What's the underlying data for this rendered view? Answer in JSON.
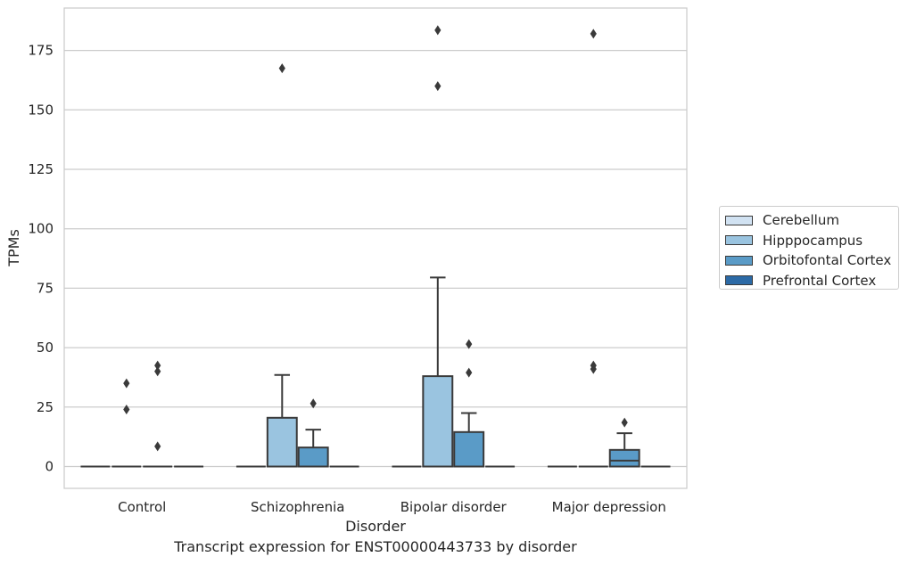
{
  "caption": "Transcript expression for ENST00000443733 by disorder",
  "chart_data": {
    "type": "box",
    "xlabel": "Disorder",
    "ylabel": "TPMs",
    "ylim": [
      -9,
      193
    ],
    "yticks": [
      0,
      25,
      50,
      75,
      100,
      125,
      150,
      175
    ],
    "grid": "horizontal",
    "legend_position": "right",
    "categories": [
      "Control",
      "Schizophrenia",
      "Bipolar disorder",
      "Major depression"
    ],
    "series": [
      {
        "name": "Cerebellum",
        "color": "#d1e2f2",
        "boxes": [
          {
            "q1": 0,
            "median": 0,
            "q3": 0,
            "whislo": 0,
            "whishi": 0,
            "fliers": []
          },
          {
            "q1": 0,
            "median": 0,
            "q3": 0,
            "whislo": 0,
            "whishi": 0,
            "fliers": []
          },
          {
            "q1": 0,
            "median": 0,
            "q3": 0,
            "whislo": 0,
            "whishi": 0,
            "fliers": []
          },
          {
            "q1": 0,
            "median": 0,
            "q3": 0,
            "whislo": 0,
            "whishi": 0,
            "fliers": []
          }
        ]
      },
      {
        "name": "Hipppocampus",
        "color": "#9ac4e0",
        "boxes": [
          {
            "q1": 0,
            "median": 0,
            "q3": 0,
            "whislo": 0,
            "whishi": 0,
            "fliers": [
              35,
              24
            ]
          },
          {
            "q1": 0,
            "median": 0,
            "q3": 20.5,
            "whislo": 0,
            "whishi": 38.5,
            "fliers": [
              167.5
            ]
          },
          {
            "q1": 0,
            "median": 0,
            "q3": 38,
            "whislo": 0,
            "whishi": 79.5,
            "fliers": [
              183.5,
              160
            ]
          },
          {
            "q1": 0,
            "median": 0,
            "q3": 0,
            "whislo": 0,
            "whishi": 0,
            "fliers": [
              182,
              42.5,
              41
            ]
          }
        ]
      },
      {
        "name": "Orbitofontal Cortex",
        "color": "#5a9bc7",
        "boxes": [
          {
            "q1": 0,
            "median": 0,
            "q3": 0,
            "whislo": 0,
            "whishi": 0,
            "fliers": [
              42.5,
              40,
              8.5
            ]
          },
          {
            "q1": 0,
            "median": 0,
            "q3": 8,
            "whislo": 0,
            "whishi": 15.5,
            "fliers": [
              26.5
            ]
          },
          {
            "q1": 0,
            "median": 0,
            "q3": 14.5,
            "whislo": 0,
            "whishi": 22.5,
            "fliers": [
              51.5,
              39.5
            ]
          },
          {
            "q1": 0,
            "median": 2.5,
            "q3": 7,
            "whislo": 0,
            "whishi": 14,
            "fliers": [
              18.5
            ]
          }
        ]
      },
      {
        "name": "Prefrontal Cortex",
        "color": "#2c6aa6",
        "boxes": [
          {
            "q1": 0,
            "median": 0,
            "q3": 0,
            "whislo": 0,
            "whishi": 0,
            "fliers": []
          },
          {
            "q1": 0,
            "median": 0,
            "q3": 0,
            "whislo": 0,
            "whishi": 0,
            "fliers": []
          },
          {
            "q1": 0,
            "median": 0,
            "q3": 0,
            "whislo": 0,
            "whishi": 0,
            "fliers": []
          },
          {
            "q1": 0,
            "median": 0,
            "q3": 0,
            "whislo": 0,
            "whishi": 0,
            "fliers": []
          }
        ]
      }
    ]
  }
}
